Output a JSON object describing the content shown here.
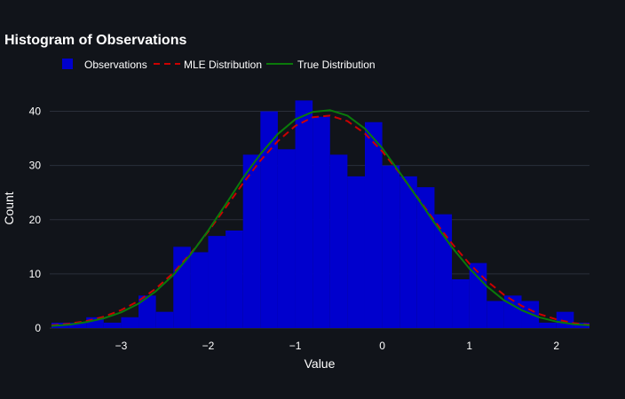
{
  "chart_data": {
    "type": "bar",
    "title": "Histogram of Observations",
    "xlabel": "Value",
    "ylabel": "Count",
    "xlim": [
      -3.82,
      2.38
    ],
    "ylim": [
      0,
      45
    ],
    "xticks": [
      -3,
      -2,
      -1,
      0,
      1,
      2
    ],
    "xtick_labels": [
      "−3",
      "−2",
      "−1",
      "0",
      "1",
      "2"
    ],
    "yticks": [
      0,
      10,
      20,
      30,
      40
    ],
    "ytick_labels": [
      "0",
      "10",
      "20",
      "30",
      "40"
    ],
    "legend": {
      "position": "top-left",
      "entries": [
        "Observations",
        "MLE Distribution",
        "True Distribution"
      ]
    },
    "colors": {
      "observations": "#0000cd",
      "mle": "#cc0000",
      "true_dist": "#0a7a0a",
      "grid": "#2a2f3a",
      "background": "#11141a"
    },
    "histogram": {
      "name": "Observations",
      "bin_start": -3.8,
      "bin_width": 0.2,
      "counts": [
        1,
        1,
        2,
        1,
        2,
        6,
        3,
        15,
        14,
        17,
        18,
        32,
        40,
        33,
        42,
        39,
        32,
        28,
        38,
        30,
        28,
        26,
        21,
        9,
        12,
        5,
        6,
        5,
        1,
        3,
        1
      ]
    },
    "series": [
      {
        "name": "MLE Distribution",
        "style": "dashed",
        "x": [
          -3.8,
          -3.6,
          -3.4,
          -3.2,
          -3.0,
          -2.8,
          -2.6,
          -2.4,
          -2.2,
          -2.0,
          -1.8,
          -1.6,
          -1.4,
          -1.2,
          -1.0,
          -0.8,
          -0.6,
          -0.4,
          -0.2,
          0.0,
          0.2,
          0.4,
          0.6,
          0.8,
          1.0,
          1.2,
          1.4,
          1.6,
          1.8,
          2.0,
          2.2,
          2.38
        ],
        "y": [
          0.5,
          0.8,
          1.3,
          2.1,
          3.3,
          5.0,
          7.3,
          10.2,
          13.8,
          17.8,
          22.2,
          26.7,
          30.9,
          34.5,
          37.3,
          38.9,
          39.2,
          38.2,
          35.9,
          32.6,
          28.6,
          24.2,
          19.8,
          15.6,
          11.9,
          8.7,
          6.1,
          4.1,
          2.6,
          1.6,
          0.9,
          0.6
        ]
      },
      {
        "name": "True Distribution",
        "style": "solid",
        "x": [
          -3.8,
          -3.6,
          -3.4,
          -3.2,
          -3.0,
          -2.8,
          -2.6,
          -2.4,
          -2.2,
          -2.0,
          -1.8,
          -1.6,
          -1.4,
          -1.2,
          -1.0,
          -0.8,
          -0.6,
          -0.4,
          -0.2,
          0.0,
          0.2,
          0.4,
          0.6,
          0.8,
          1.0,
          1.2,
          1.4,
          1.6,
          1.8,
          2.0,
          2.2,
          2.38
        ],
        "y": [
          0.4,
          0.6,
          1.1,
          1.8,
          2.9,
          4.5,
          6.8,
          9.8,
          13.6,
          18.0,
          22.8,
          27.7,
          32.1,
          35.8,
          38.5,
          39.9,
          40.2,
          39.2,
          36.8,
          33.2,
          28.7,
          24.1,
          19.4,
          14.9,
          11.0,
          7.7,
          5.1,
          3.3,
          2.0,
          1.2,
          0.7,
          0.5
        ]
      }
    ]
  }
}
